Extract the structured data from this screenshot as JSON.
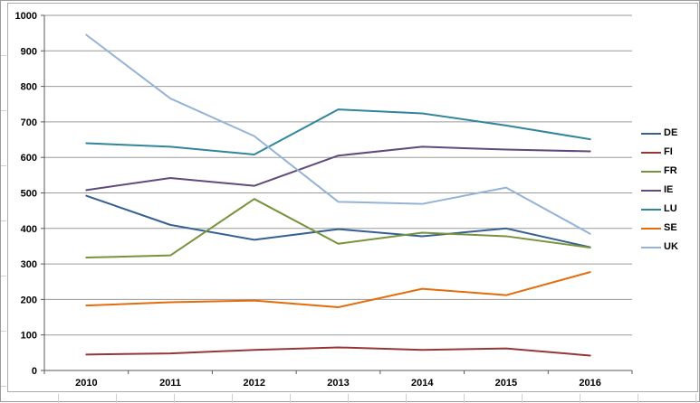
{
  "colors": {
    "gridline": "#9a9a9a",
    "axis": "#595959",
    "chart_border": "#ababab",
    "text": "#000000",
    "background": "#ffffff"
  },
  "chart_data": {
    "type": "line",
    "title": "",
    "xlabel": "",
    "ylabel": "",
    "categories": [
      "2010",
      "2011",
      "2012",
      "2013",
      "2014",
      "2015",
      "2016"
    ],
    "series": [
      {
        "name": "DE",
        "color": "#376092",
        "values": [
          492,
          410,
          368,
          398,
          378,
          400,
          347
        ]
      },
      {
        "name": "FI",
        "color": "#953735",
        "values": [
          45,
          48,
          58,
          65,
          58,
          62,
          42
        ]
      },
      {
        "name": "FR",
        "color": "#77933C",
        "values": [
          318,
          324,
          483,
          357,
          388,
          378,
          346
        ]
      },
      {
        "name": "IE",
        "color": "#604A7B",
        "values": [
          508,
          542,
          520,
          605,
          630,
          622,
          617
        ]
      },
      {
        "name": "LU",
        "color": "#31859C",
        "values": [
          640,
          630,
          608,
          735,
          724,
          690,
          651
        ]
      },
      {
        "name": "SE",
        "color": "#E46C0A",
        "values": [
          183,
          192,
          197,
          178,
          230,
          212,
          277
        ]
      },
      {
        "name": "UK",
        "color": "#95B3D7",
        "values": [
          945,
          766,
          660,
          475,
          469,
          515,
          385
        ]
      }
    ],
    "ylim": [
      0,
      1000
    ],
    "y_tick_step": 100,
    "y_tick_labels": [
      "0",
      "100",
      "200",
      "300",
      "400",
      "500",
      "600",
      "700",
      "800",
      "900",
      "1000"
    ],
    "grid": true,
    "legend_position": "right"
  }
}
